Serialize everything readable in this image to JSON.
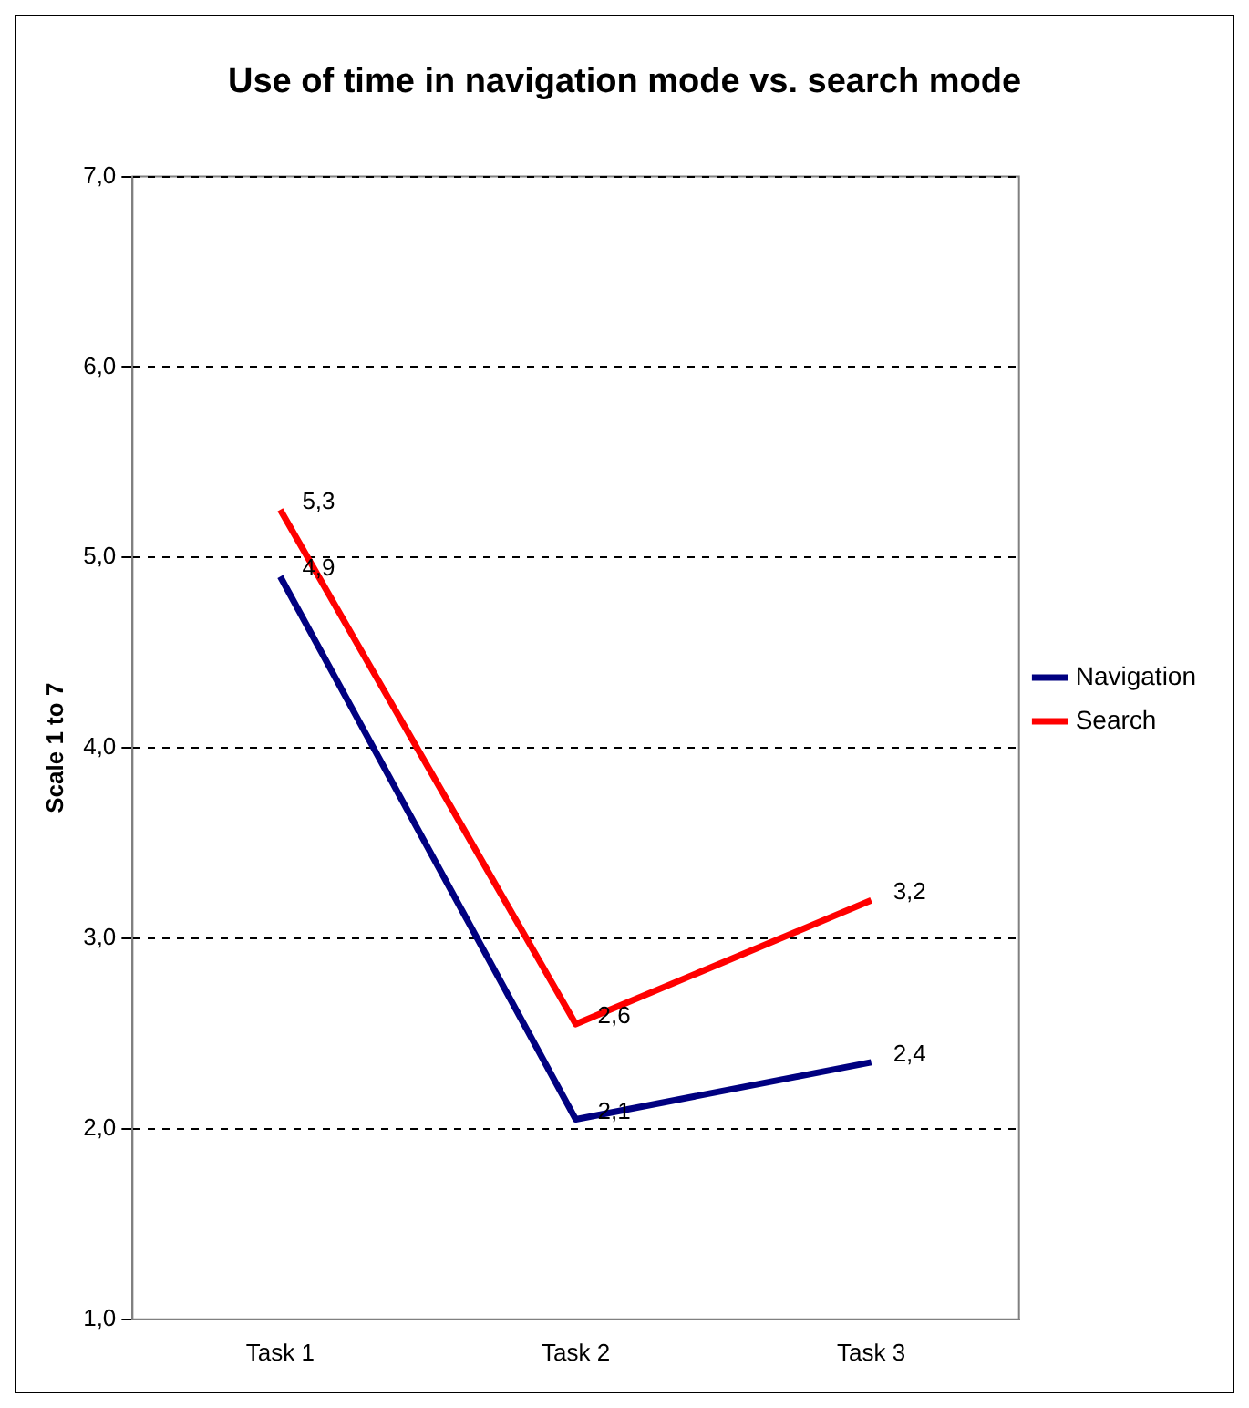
{
  "chart_data": {
    "type": "line",
    "title": "Use of time in navigation mode vs. search mode",
    "ylabel": "Scale 1 to 7",
    "categories": [
      "Task 1",
      "Task 2",
      "Task 3"
    ],
    "series": [
      {
        "name": "Navigation",
        "color": "#000080",
        "values": [
          4.9,
          2.05,
          2.35
        ],
        "value_labels": [
          "4,9",
          "2,1",
          "2,4"
        ]
      },
      {
        "name": "Search",
        "color": "#ff0000",
        "values": [
          5.25,
          2.55,
          3.2
        ],
        "value_labels": [
          "5,3",
          "2,6",
          "3,2"
        ]
      }
    ],
    "ylim": [
      1,
      7
    ],
    "yticks": [
      {
        "value": 1,
        "label": "1,0"
      },
      {
        "value": 2,
        "label": "2,0"
      },
      {
        "value": 3,
        "label": "3,0"
      },
      {
        "value": 4,
        "label": "4,0"
      },
      {
        "value": 5,
        "label": "5,0"
      },
      {
        "value": 6,
        "label": "6,0"
      },
      {
        "value": 7,
        "label": "7,0"
      }
    ],
    "grid": "y",
    "legend": "right",
    "marker": "none",
    "line_style": "solid"
  }
}
